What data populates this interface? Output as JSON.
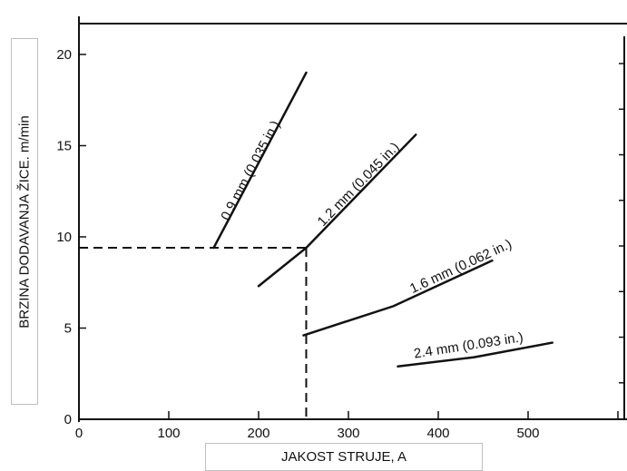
{
  "chart_data": {
    "type": "line",
    "xlabel": "JAKOST STRUJE, A",
    "ylabel": "BRZINA DODAVANJA ŽICE. m/min",
    "xlim": [
      0,
      610
    ],
    "ylim": [
      0,
      22
    ],
    "xticks": [
      0,
      100,
      200,
      300,
      400,
      500
    ],
    "yticks": [
      0,
      5,
      10,
      15,
      20
    ],
    "grid": false,
    "series": [
      {
        "name": "0.9 mm (0.035 in.)",
        "x": [
          150,
          253
        ],
        "y": [
          9.4,
          19.0
        ]
      },
      {
        "name": "1.2 mm (0.045 in.)",
        "x": [
          200,
          253,
          375
        ],
        "y": [
          7.3,
          9.4,
          15.6
        ]
      },
      {
        "name": "1.6 mm (0.062 in.)",
        "x": [
          250,
          350,
          460
        ],
        "y": [
          4.6,
          6.2,
          8.7
        ]
      },
      {
        "name": "2.4 mm (0.093 in.)",
        "x": [
          355,
          440,
          527
        ],
        "y": [
          2.9,
          3.4,
          4.2
        ]
      }
    ],
    "reference_lines": {
      "x": 253,
      "y": 9.4,
      "style": "dashed"
    },
    "line_color": "#111111"
  }
}
